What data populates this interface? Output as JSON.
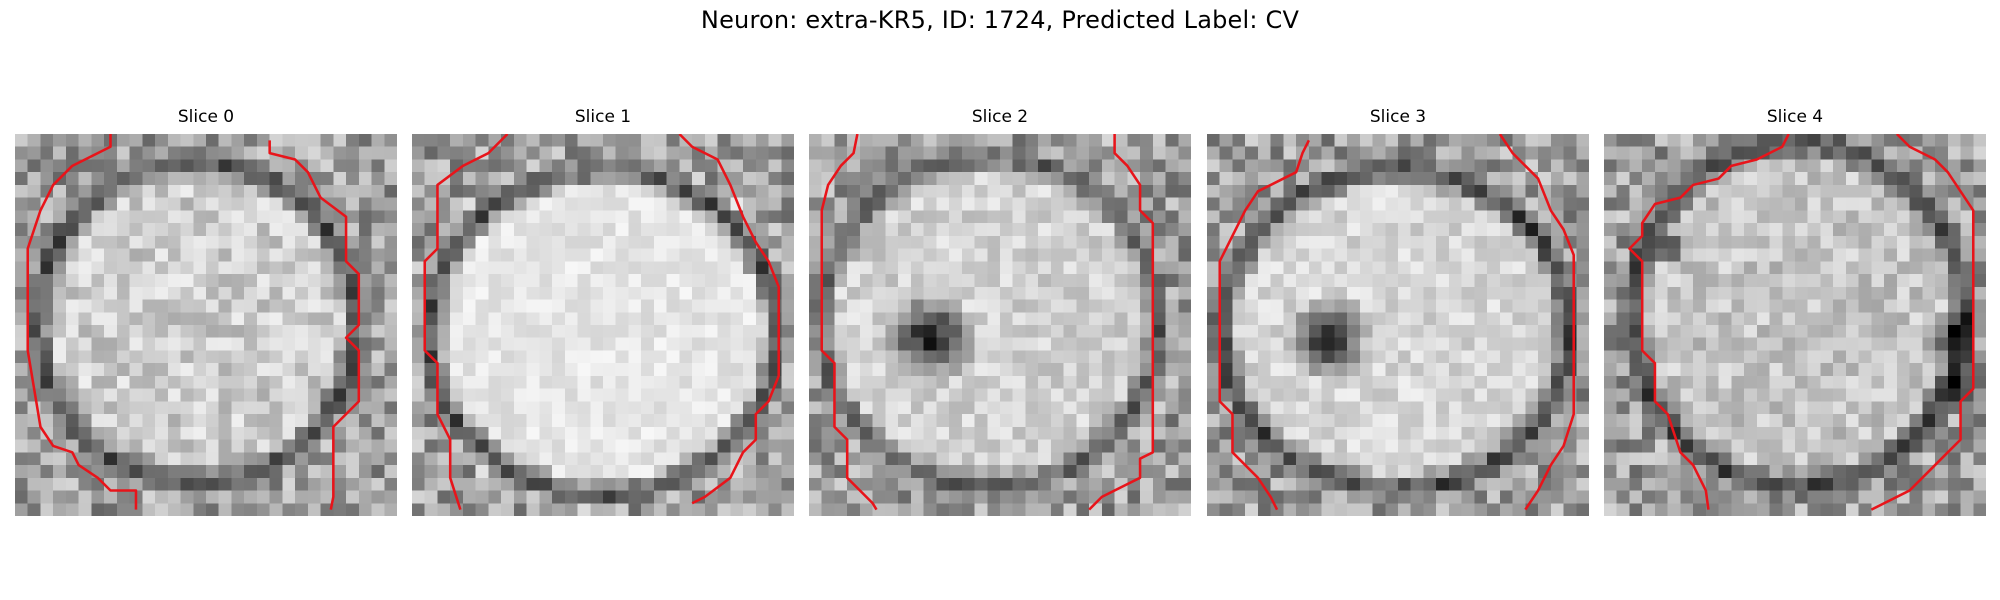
{
  "figure": {
    "suptitle": "Neuron: extra-KR5, ID: 1724, Predicted Label: CV",
    "panels": [
      {
        "title": "Slice 0"
      },
      {
        "title": "Slice 1"
      },
      {
        "title": "Slice 2"
      },
      {
        "title": "Slice 3"
      },
      {
        "title": "Slice 4"
      }
    ],
    "contour_color": "#e8141a"
  }
}
